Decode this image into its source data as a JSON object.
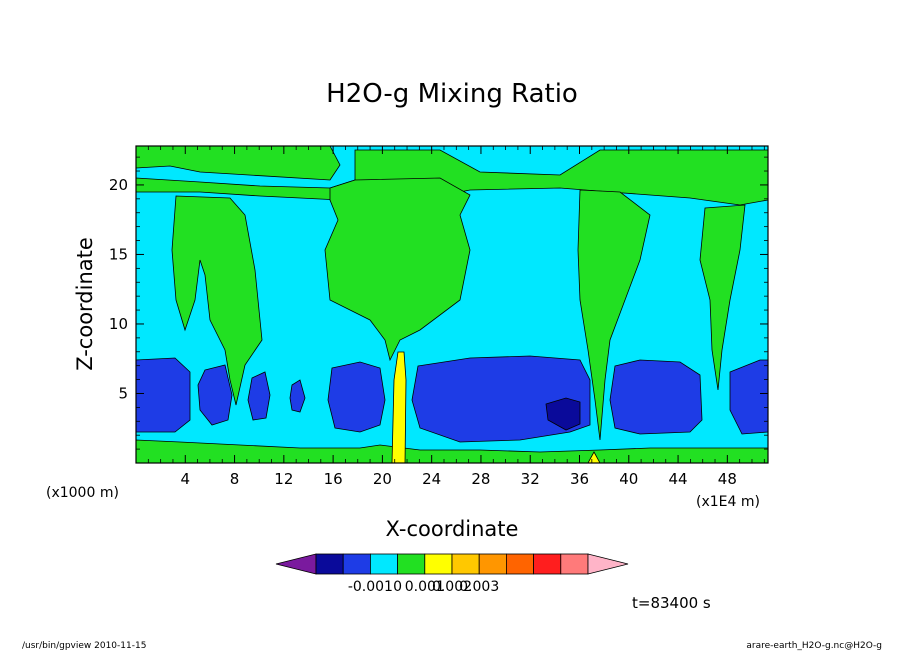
{
  "chart_data": {
    "type": "contour",
    "title": "H2O-g Mixing Ratio",
    "xlabel": "X-coordinate",
    "ylabel": "Z-coordinate",
    "x_unit_left": "(x1000 m)",
    "x_unit_right": "(x1E4 m)",
    "x_ticks": [
      "4",
      "8",
      "12",
      "16",
      "20",
      "24",
      "28",
      "32",
      "36",
      "40",
      "44",
      "48"
    ],
    "x_tick_values": [
      4,
      8,
      12,
      16,
      20,
      24,
      28,
      32,
      36,
      40,
      44,
      48
    ],
    "y_ticks": [
      "5",
      "10",
      "15",
      "20"
    ],
    "y_tick_values": [
      5,
      10,
      15,
      20
    ],
    "xlim": [
      0,
      51.3
    ],
    "ylim": [
      0,
      22.8
    ],
    "colorbar": {
      "colors": [
        "#7a1a9e",
        "#0a0a9a",
        "#1e3ce6",
        "#00e8ff",
        "#22e022",
        "#ffff00",
        "#ffc800",
        "#ff9600",
        "#ff6400",
        "#ff1e1e",
        "#ff7a7a",
        "#ffb4c8"
      ],
      "labels": [
        "-0.001",
        "0",
        "0.001",
        "0.002",
        "0.003"
      ]
    },
    "time_label": "t=83400 s"
  },
  "footer": {
    "left": "/usr/bin/gpview   2010-11-15",
    "right": "arare-earth_H2O-g.nc@H2O-g"
  }
}
